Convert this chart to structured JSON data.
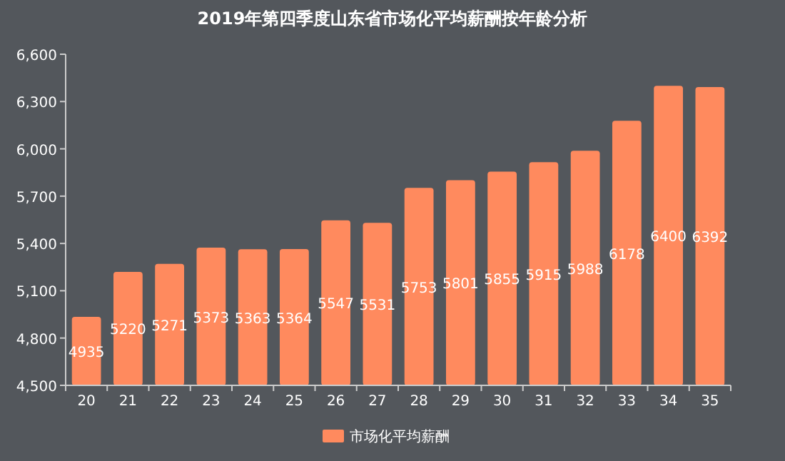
{
  "chart_data": {
    "type": "bar",
    "title": "2019年第四季度山东省市场化平均薪酬按年龄分析",
    "categories": [
      "20",
      "21",
      "22",
      "23",
      "24",
      "25",
      "26",
      "27",
      "28",
      "29",
      "30",
      "31",
      "32",
      "33",
      "34",
      "35"
    ],
    "series": [
      {
        "name": "市场化平均薪酬",
        "color": "#ff8a5e",
        "values": [
          4935,
          5220,
          5271,
          5373,
          5363,
          5364,
          5547,
          5531,
          5753,
          5801,
          5855,
          5915,
          5988,
          6178,
          6400,
          6392
        ]
      }
    ],
    "ylim": [
      4500,
      6600
    ],
    "yticks": [
      {
        "value": 4500,
        "label": "4,500"
      },
      {
        "value": 4800,
        "label": "4,800"
      },
      {
        "value": 5100,
        "label": "5,100"
      },
      {
        "value": 5400,
        "label": "5,400"
      },
      {
        "value": 5700,
        "label": "5,700"
      },
      {
        "value": 6000,
        "label": "6,000"
      },
      {
        "value": 6300,
        "label": "6,300"
      },
      {
        "value": 6600,
        "label": "6,600"
      }
    ],
    "data_labels": true,
    "grid": false,
    "legend": "bottom"
  }
}
